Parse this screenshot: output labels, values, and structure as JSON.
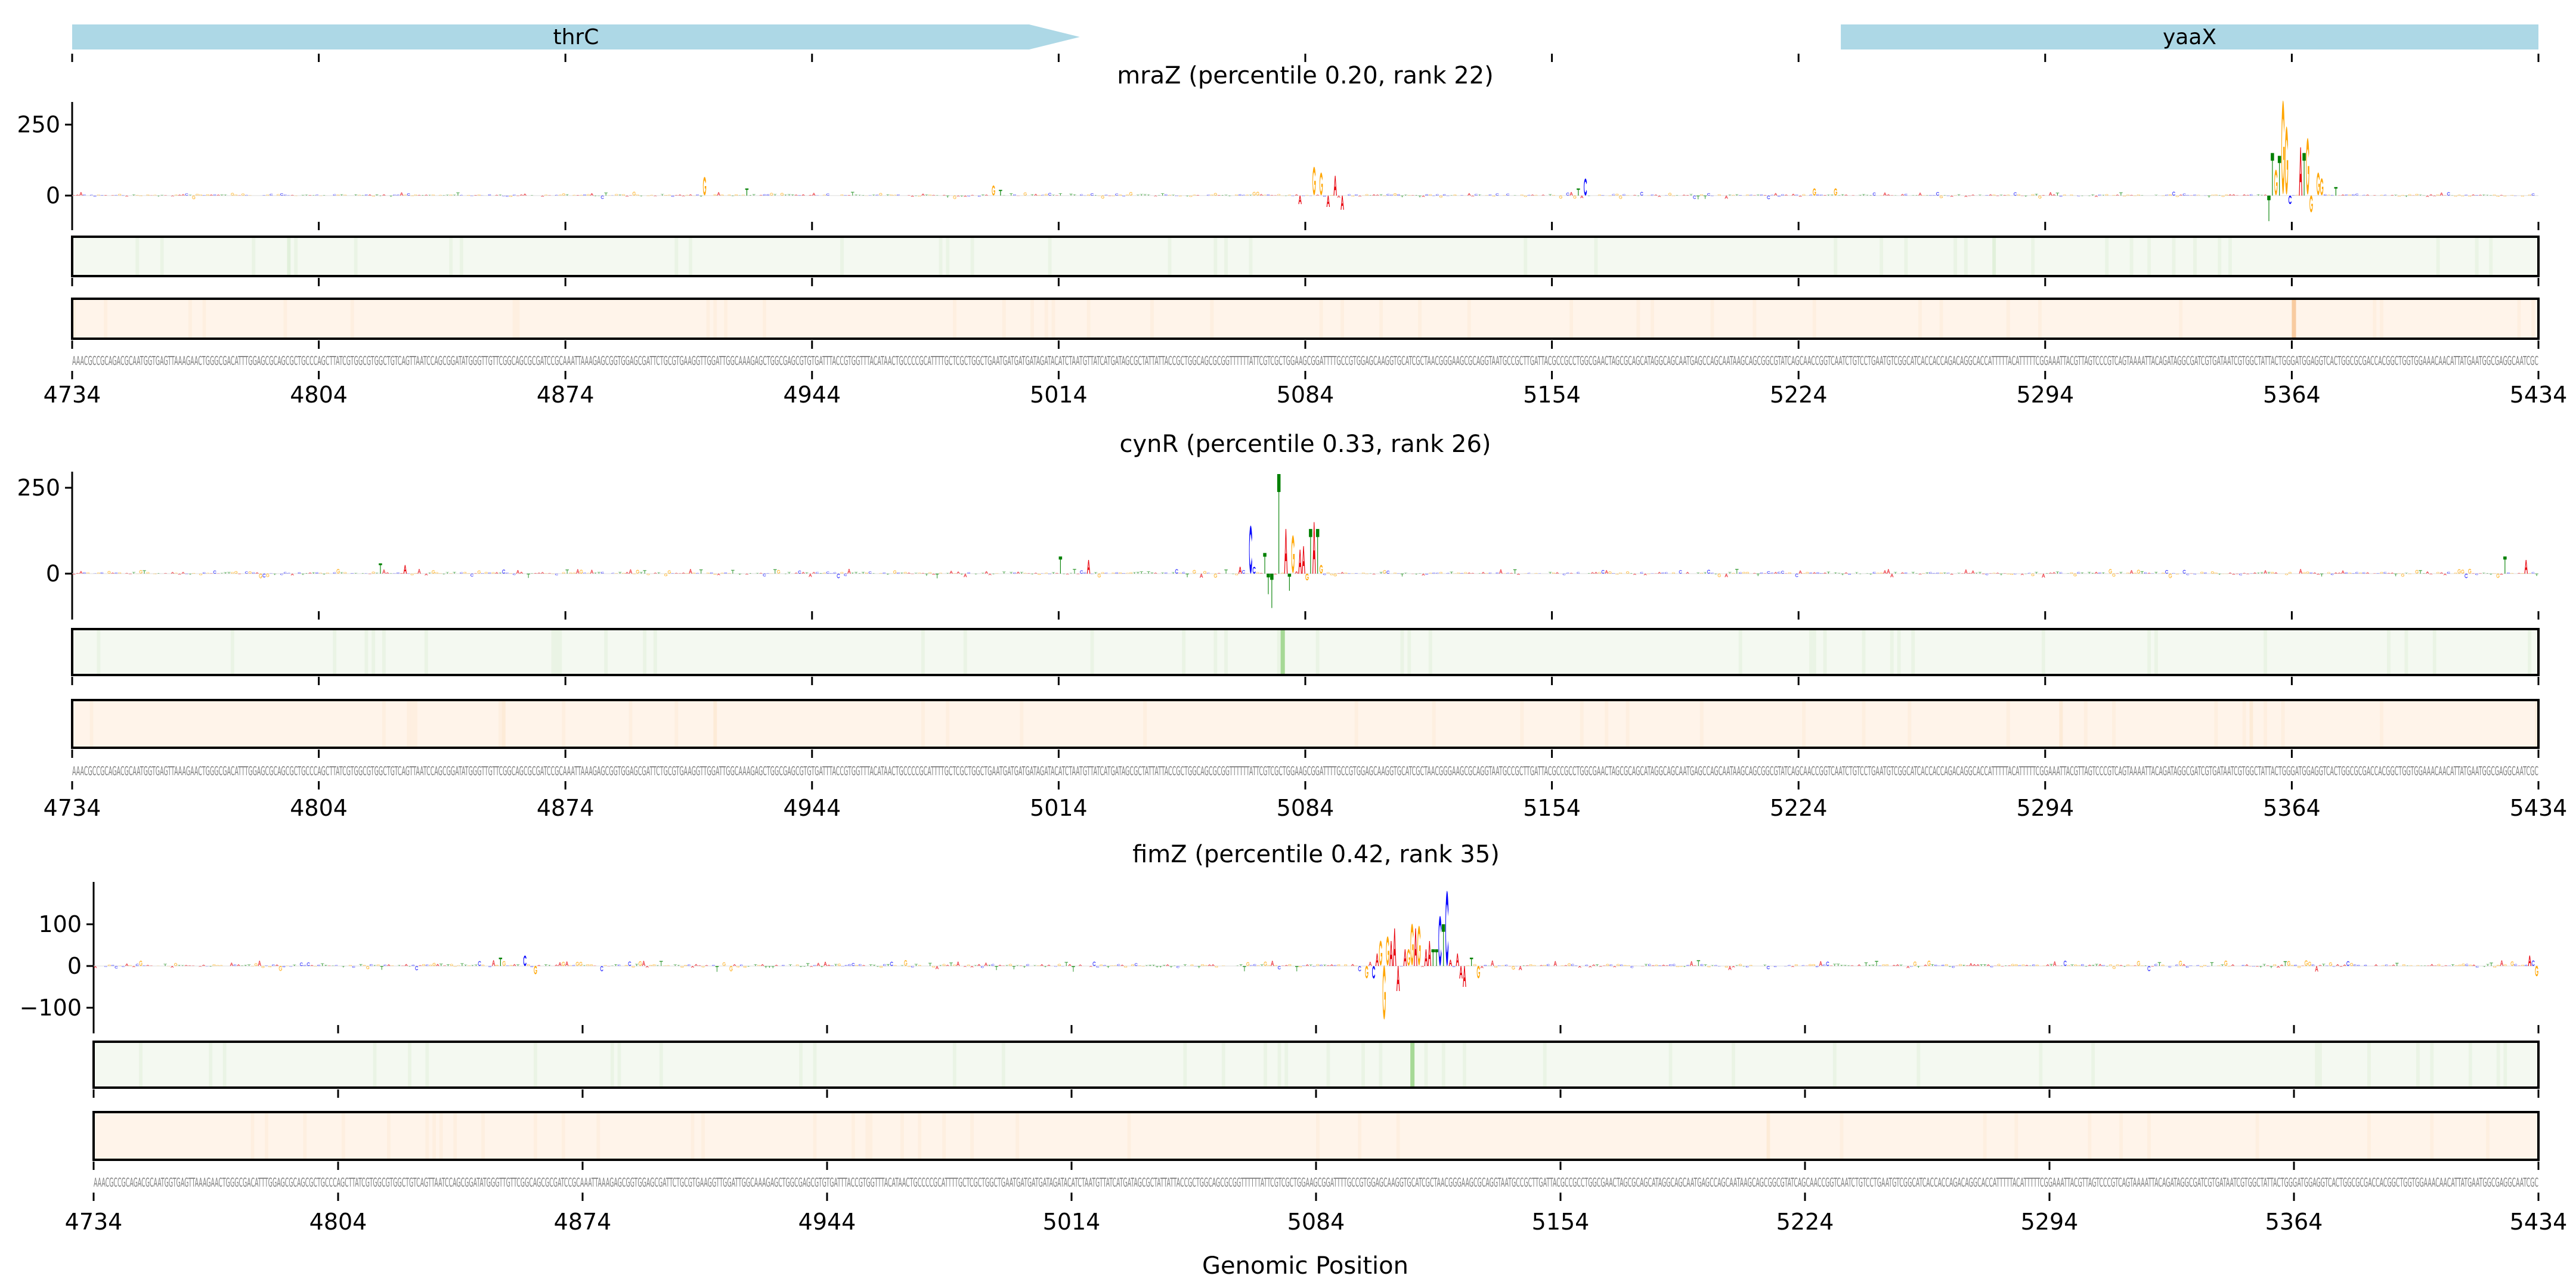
{
  "chart_data": {
    "type": "sequence-logo-tracks",
    "xlabel": "Genomic Position",
    "xlim": [
      4734,
      5434
    ],
    "xticks": [
      4734,
      4804,
      4874,
      4944,
      5014,
      5084,
      5154,
      5224,
      5294,
      5364,
      5434
    ],
    "xtick_labels": [
      "4734",
      "4804",
      "4874",
      "4944",
      "5014",
      "5084",
      "5154",
      "5224",
      "5294",
      "5364",
      "5434"
    ],
    "base_colors": {
      "A": "#e8000b",
      "C": "#0000ff",
      "G": "#ffa500",
      "T": "#008000"
    },
    "track_colors": {
      "green_bg": "#f4f9f1",
      "green_hi": "#a6d996",
      "orange_bg": "#fff4ea",
      "orange_hi": "#f8cba0"
    },
    "genes": [
      {
        "name": "thrC",
        "start": 4734,
        "end": 5020,
        "strand": "+"
      },
      {
        "name": "yaaX",
        "start": 5236,
        "end": 5434,
        "strand": "+"
      }
    ],
    "sequence_segments": [
      "AAACGCCGCAGACGCAATGGTGAGTTAAAGAACTGGGCGACATTTGGAGCGCAGCGCTGCCCAGCTTATCGTGGCGTGGCTGTCAGTTAATCCAGCGGATATGGGTTGTTCGGCAGCGCGATCCGCAAATTAAAGAGCGGTGGAGCGATTCTGCGTGAAGGTTGGATTGGCAAAGAGCTGGCGAGCGTGTGATTTACCGTGGTTTACATAACTGCCCCGCATTTTGCTCGCTGGCTGAATGATGATGATAGATACATCTAATGTTATCATGATAGCGCTATTATTACCGCTGGCAGCGCGGTTTTTTATTCGTCGCTGGAAGCGGATTTTGCCGTGGAGCAAGGTGCATCGCTAACGGGAAGCGCAGGTAATGCCGCTTGATTACGCCGCCTGGCGAACTAGCGCAGCATAGGCAGCAATGAGCCAGCAATAAGCAGCGGCGTATCAGCAACCGGTCAATCTGTCCTGAATGTCGGCATCACCACCAGACAGGCACCATTTTTACATTTTTCG",
      "GAAATTACGTTAGTCCCGTCAGTAAAATTACAGATAGGCGATCGTGATAATCGTGGCTATTACTGGGATGGAGGTCACTGGCGCGACCACGGCTGGTGGAAACAACATTATGAATGGCGAGGCAATCGC"
    ],
    "panels": [
      {
        "title": "mraZ (percentile 0.20, rank 22)",
        "ylim": [
          -92,
          335
        ],
        "yticks": [
          0,
          250
        ],
        "ytick_labels": [
          "0",
          "250"
        ],
        "peaks": [
          [
            4913,
            65,
            "G"
          ],
          [
            4925,
            25,
            "T"
          ],
          [
            4995,
            35,
            "G"
          ],
          [
            4997,
            20,
            "T"
          ],
          [
            5082,
            -30,
            "A"
          ],
          [
            5086,
            100,
            "G"
          ],
          [
            5088,
            80,
            "G"
          ],
          [
            5090,
            -40,
            "A"
          ],
          [
            5092,
            70,
            "A"
          ],
          [
            5094,
            -50,
            "A"
          ],
          [
            5161,
            25,
            "T"
          ],
          [
            5163,
            60,
            "C"
          ],
          [
            5228,
            25,
            "G"
          ],
          [
            5234,
            25,
            "G"
          ],
          [
            5357,
            -90,
            "T"
          ],
          [
            5358,
            150,
            "T"
          ],
          [
            5359,
            90,
            "G"
          ],
          [
            5360,
            140,
            "T"
          ],
          [
            5361,
            330,
            "G"
          ],
          [
            5362,
            240,
            "G"
          ],
          [
            5363,
            -30,
            "C"
          ],
          [
            5366,
            170,
            "A"
          ],
          [
            5367,
            150,
            "T"
          ],
          [
            5368,
            200,
            "G"
          ],
          [
            5369,
            -60,
            "G"
          ],
          [
            5371,
            80,
            "G"
          ],
          [
            5372,
            60,
            "G"
          ],
          [
            5376,
            30,
            "T"
          ]
        ],
        "green_highlights": [],
        "orange_highlights": [
          5364
        ]
      },
      {
        "title": "cynR (percentile 0.33, rank 26)",
        "ylim": [
          -115,
          310
        ],
        "yticks": [
          0,
          250
        ],
        "ytick_labels": [
          "0",
          "250"
        ],
        "peaks": [
          [
            4821,
            30,
            "T"
          ],
          [
            4828,
            25,
            "A"
          ],
          [
            5014,
            50,
            "T"
          ],
          [
            5022,
            40,
            "A"
          ],
          [
            5065,
            20,
            "A"
          ],
          [
            5068,
            140,
            "C"
          ],
          [
            5069,
            20,
            "C"
          ],
          [
            5072,
            60,
            "T"
          ],
          [
            5073,
            -60,
            "T"
          ],
          [
            5074,
            -100,
            "T"
          ],
          [
            5076,
            290,
            "T"
          ],
          [
            5078,
            130,
            "A"
          ],
          [
            5079,
            -50,
            "T"
          ],
          [
            5080,
            110,
            "G"
          ],
          [
            5082,
            70,
            "A"
          ],
          [
            5083,
            80,
            "A"
          ],
          [
            5084,
            -20,
            "G"
          ],
          [
            5085,
            130,
            "T"
          ],
          [
            5086,
            150,
            "A"
          ],
          [
            5087,
            130,
            "T"
          ],
          [
            5088,
            25,
            "G"
          ],
          [
            5424,
            50,
            "T"
          ],
          [
            5430,
            40,
            "A"
          ]
        ],
        "green_highlights": [
          5077
        ],
        "orange_highlights": []
      },
      {
        "title": "fimZ (percentile 0.42, rank 35)",
        "ylim": [
          -140,
          200
        ],
        "yticks": [
          -100,
          0,
          100
        ],
        "ytick_labels": [
          "−100",
          "0",
          "100"
        ],
        "peaks": [
          [
            4850,
            20,
            "T"
          ],
          [
            4857,
            25,
            "C"
          ],
          [
            4860,
            -20,
            "G"
          ],
          [
            5098,
            -30,
            "G"
          ],
          [
            5100,
            -30,
            "C"
          ],
          [
            5101,
            30,
            "A"
          ],
          [
            5102,
            60,
            "G"
          ],
          [
            5103,
            -130,
            "G"
          ],
          [
            5104,
            70,
            "G"
          ],
          [
            5105,
            60,
            "A"
          ],
          [
            5106,
            90,
            "A"
          ],
          [
            5107,
            -60,
            "A"
          ],
          [
            5109,
            40,
            "A"
          ],
          [
            5110,
            40,
            "G"
          ],
          [
            5111,
            100,
            "G"
          ],
          [
            5112,
            90,
            "A"
          ],
          [
            5113,
            95,
            "G"
          ],
          [
            5115,
            40,
            "A"
          ],
          [
            5116,
            60,
            "A"
          ],
          [
            5117,
            40,
            "T"
          ],
          [
            5118,
            40,
            "T"
          ],
          [
            5119,
            120,
            "C"
          ],
          [
            5120,
            100,
            "T"
          ],
          [
            5121,
            180,
            "C"
          ],
          [
            5122,
            15,
            "A"
          ],
          [
            5124,
            30,
            "A"
          ],
          [
            5125,
            -30,
            "A"
          ],
          [
            5126,
            -50,
            "A"
          ],
          [
            5128,
            20,
            "T"
          ],
          [
            5130,
            -30,
            "G"
          ],
          [
            5431,
            25,
            "A"
          ],
          [
            5433,
            -25,
            "G"
          ]
        ],
        "green_highlights": [
          5111
        ],
        "orange_highlights": []
      }
    ]
  }
}
